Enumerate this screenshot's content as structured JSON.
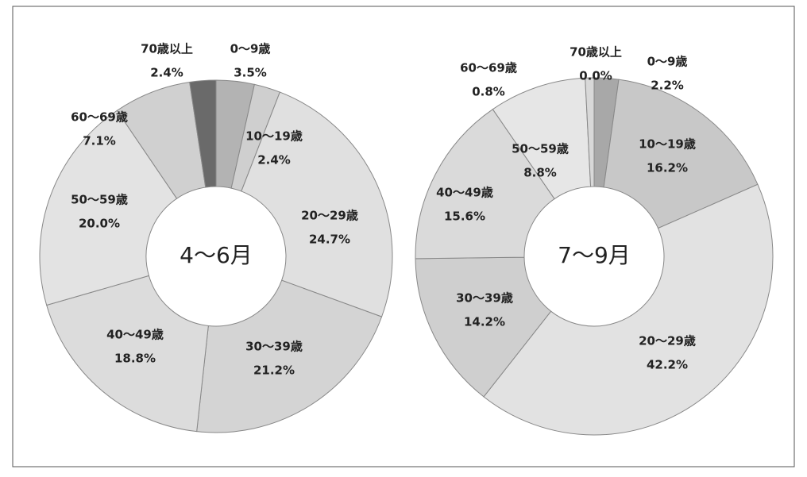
{
  "chart_data": [
    {
      "type": "pie",
      "title": "4〜6月",
      "categories": [
        "0〜9歳",
        "10〜19歳",
        "20〜29歳",
        "30〜39歳",
        "40〜49歳",
        "50〜59歳",
        "60〜69歳",
        "70歳以上"
      ],
      "values": [
        3.5,
        2.4,
        24.7,
        21.2,
        18.8,
        20.0,
        7.1,
        2.4
      ],
      "value_labels": [
        "3.5%",
        "2.4%",
        "24.7%",
        "21.2%",
        "18.8%",
        "20.0%",
        "7.1%",
        "2.4%"
      ],
      "colors": [
        "#b3b3b3",
        "#cfcfcf",
        "#e0e0e0",
        "#d4d4d4",
        "#dcdcdc",
        "#e3e3e3",
        "#d0d0d0",
        "#6a6a6a"
      ]
    },
    {
      "type": "pie",
      "title": "7〜9月",
      "categories": [
        "0〜9歳",
        "10〜19歳",
        "20〜29歳",
        "30〜39歳",
        "40〜49歳",
        "50〜59歳",
        "60〜69歳",
        "70歳以上"
      ],
      "values": [
        2.2,
        16.2,
        42.2,
        14.2,
        15.6,
        8.8,
        0.8,
        0.0
      ],
      "value_labels": [
        "2.2%",
        "16.2%",
        "42.2%",
        "14.2%",
        "15.6%",
        "8.8%",
        "0.8%",
        "0.0%"
      ],
      "colors": [
        "#a8a8a8",
        "#c8c8c8",
        "#e2e2e2",
        "#cfcfcf",
        "#dadada",
        "#e6e6e6",
        "#d8d8d8",
        "#ffffff"
      ]
    }
  ]
}
